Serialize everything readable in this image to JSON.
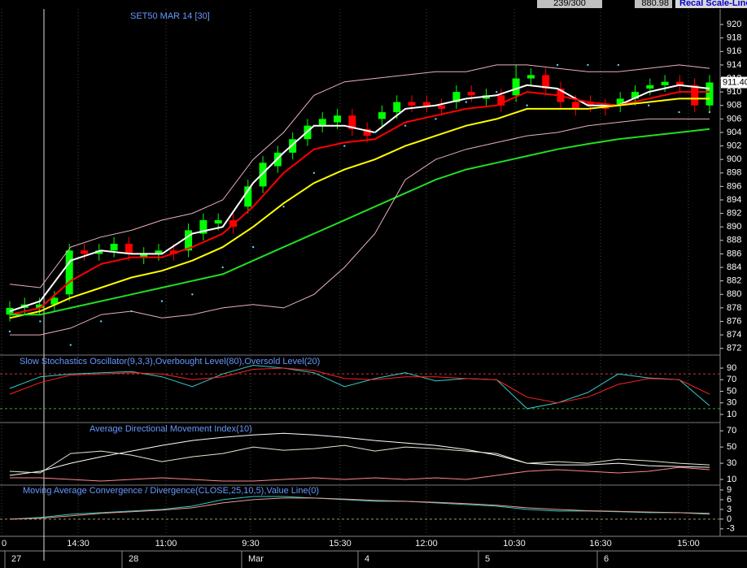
{
  "header": {
    "counter": "239/300",
    "price": "880.98",
    "button": "Recal Scale-Line"
  },
  "x_axis": {
    "times": [
      "0",
      "14:30",
      "11:00",
      "9:30",
      "15:30",
      "12:00",
      "10:30",
      "16:30",
      "15:00"
    ],
    "dates": [
      "27",
      "28",
      "Mar",
      "4",
      "5",
      "6"
    ]
  },
  "chart_data": [
    {
      "type": "candlestick",
      "title": "SET50 MAR 14   [30]",
      "up_color": "#00ff00",
      "down_color": "#ff0000",
      "open": [
        877,
        878,
        878,
        878.5,
        880,
        886.5,
        886,
        886.5,
        887.5,
        885.5,
        886,
        886.5,
        886.5,
        889,
        890.5,
        891,
        893,
        896,
        899,
        901,
        903,
        905,
        905.5,
        906.5,
        904.5,
        906,
        907,
        908.5,
        908.5,
        908,
        908.5,
        910,
        909,
        909.5,
        909.5,
        912,
        912.5,
        910.5,
        908.5,
        908.5,
        908,
        908,
        909,
        910.5,
        911,
        911.5,
        911,
        908
      ],
      "high": [
        879,
        879.5,
        879.5,
        880.5,
        887.5,
        887.5,
        887.5,
        888.5,
        888.5,
        887,
        887.5,
        887.5,
        890.5,
        892,
        892,
        892,
        897,
        900.5,
        902,
        904,
        906,
        907,
        907.5,
        907.5,
        905.5,
        908,
        909.5,
        909.5,
        909.5,
        909,
        911,
        911,
        910.5,
        910.5,
        914,
        913.5,
        913.5,
        911.5,
        909.5,
        909.5,
        909,
        910,
        911,
        912,
        912.5,
        912.5,
        912,
        912.5
      ],
      "low": [
        876,
        877,
        877,
        877.5,
        879,
        885,
        885,
        885.5,
        885,
        884.5,
        885,
        885,
        885.5,
        888,
        889.5,
        889,
        892,
        895,
        898,
        900,
        902,
        904,
        904.5,
        903.5,
        902.5,
        905,
        906,
        907,
        907,
        906.5,
        907.5,
        908.5,
        908,
        907,
        908.5,
        911,
        909.5,
        907.5,
        906.5,
        907,
        906.5,
        907,
        908,
        909.5,
        910,
        910,
        907,
        907
      ],
      "close": [
        878,
        878.5,
        878.5,
        879.5,
        886.5,
        886,
        886.5,
        887.5,
        886,
        886,
        886.5,
        886,
        889.5,
        891,
        891,
        890,
        896,
        899.5,
        901,
        903,
        905,
        906,
        906.5,
        904.5,
        903.5,
        907,
        908.5,
        908,
        908,
        907.5,
        910,
        909.5,
        909.5,
        908,
        912,
        912.5,
        910.5,
        908.5,
        907.5,
        908,
        907.5,
        909,
        910,
        911,
        911.5,
        911,
        908,
        911.4
      ],
      "last_label": "911.40",
      "series": [
        {
          "color": "#ffffff",
          "values": [
            877.5,
            879,
            885,
            886.5,
            886,
            886,
            889,
            890,
            896.5,
            901,
            905,
            905,
            904,
            907.5,
            908,
            909,
            909.5,
            911,
            910.5,
            908,
            908,
            910,
            911,
            910.5
          ]
        },
        {
          "color": "#ff0000",
          "values": [
            877,
            878,
            882,
            884.5,
            885.5,
            885.5,
            887,
            889,
            893,
            898,
            901.5,
            902.5,
            903,
            905.5,
            906.5,
            907.5,
            908,
            910,
            909.5,
            908.5,
            908,
            909,
            910,
            910
          ]
        },
        {
          "color": "#ffff00",
          "values": [
            876.5,
            877.5,
            879.5,
            881,
            882.5,
            883.5,
            885,
            887,
            890,
            893.5,
            896.5,
            898.5,
            900,
            902,
            903.5,
            905,
            906,
            907.5,
            907.5,
            907.5,
            908,
            908.5,
            909,
            909
          ]
        },
        {
          "color": "#22dd22",
          "values": [
            877,
            877,
            878,
            879,
            880,
            881,
            882,
            883,
            885,
            887,
            889,
            891,
            893,
            895,
            897,
            898.5,
            899.5,
            900.5,
            901.5,
            902.3,
            903,
            903.5,
            904,
            904.5
          ]
        },
        {
          "color": "#e8b0c0",
          "values": [
            881.5,
            881,
            887,
            888.5,
            889.5,
            891,
            892,
            894,
            900,
            904,
            909.5,
            911.5,
            912,
            912.5,
            913,
            913,
            914,
            914,
            913.5,
            913,
            913,
            913.5,
            914,
            913.5
          ]
        },
        {
          "color": "#e8b0c0",
          "values": [
            874,
            874,
            875,
            877,
            877.5,
            876.5,
            877,
            878,
            878.5,
            878,
            880,
            884,
            889,
            897,
            900,
            901.5,
            902.5,
            903.5,
            904,
            905,
            905.5,
            906,
            906,
            906
          ]
        },
        {
          "color": "#66ccff",
          "style": "dots",
          "values": [
            874.5,
            876,
            872.5,
            876,
            877.5,
            879,
            880,
            884,
            887,
            893,
            898,
            902,
            904,
            905,
            906,
            908.5,
            910,
            908,
            914,
            914,
            914,
            908,
            907,
            907
          ]
        }
      ],
      "ylim": [
        871,
        922.3
      ],
      "yticks": [
        872,
        874,
        876,
        878,
        880,
        882,
        884,
        886,
        888,
        890,
        892,
        894,
        896,
        898,
        900,
        902,
        904,
        906,
        908,
        910,
        912,
        914,
        916,
        918,
        920
      ]
    },
    {
      "type": "line",
      "title": "Slow Stochastics Oscillator(9,3,3),Overbought Level(80),Oversold Level(20)",
      "series": [
        {
          "color": "#33cccc",
          "values": [
            55,
            75,
            80,
            82,
            84,
            75,
            58,
            80,
            95,
            90,
            82,
            58,
            72,
            82,
            68,
            72,
            70,
            20,
            30,
            48,
            80,
            73,
            70,
            25
          ]
        },
        {
          "color": "#ff2222",
          "values": [
            45,
            65,
            78,
            80,
            82,
            80,
            70,
            75,
            88,
            90,
            86,
            72,
            70,
            75,
            75,
            72,
            70,
            40,
            30,
            40,
            62,
            72,
            70,
            45
          ]
        }
      ],
      "levels": [
        {
          "value": 80,
          "color": "#cc3333"
        },
        {
          "value": 20,
          "color": "#33aa33"
        }
      ],
      "ylim": [
        -4,
        112.5
      ],
      "yticks": [
        10,
        30,
        50,
        70,
        90
      ]
    },
    {
      "type": "line",
      "title": "Average Directional Movement Index(10)",
      "series": [
        {
          "color": "#ffffff",
          "values": [
            15,
            20,
            30,
            38,
            45,
            52,
            58,
            62,
            65,
            67,
            65,
            62,
            58,
            55,
            52,
            47,
            40,
            30,
            28,
            28,
            30,
            27,
            26,
            25
          ]
        },
        {
          "color": "#e0e8d0",
          "values": [
            20,
            18,
            42,
            45,
            40,
            32,
            38,
            42,
            50,
            46,
            48,
            52,
            45,
            50,
            48,
            45,
            42,
            30,
            32,
            30,
            35,
            33,
            30,
            28
          ]
        },
        {
          "color": "#ff8888",
          "values": [
            12,
            12,
            10,
            8,
            10,
            12,
            10,
            8,
            8,
            10,
            12,
            10,
            12,
            10,
            12,
            10,
            15,
            20,
            22,
            20,
            18,
            20,
            25,
            22
          ]
        }
      ],
      "ylim": [
        3,
        80.2
      ],
      "yticks": [
        10,
        30,
        50,
        70
      ]
    },
    {
      "type": "line",
      "title": "Moving Average Convergence / Divergence(CLOSE,25,10,5),Value Line(0)",
      "series": [
        {
          "color": "#33cccc",
          "values": [
            0,
            0.5,
            1.5,
            2,
            2.5,
            3,
            4,
            6,
            7,
            7,
            6.5,
            6,
            5.5,
            5.5,
            5,
            4.5,
            4,
            3,
            2.5,
            2.5,
            2.3,
            2,
            2,
            1.5
          ]
        },
        {
          "color": "#ee9988",
          "values": [
            0,
            0.3,
            1,
            1.8,
            2.3,
            2.8,
            3.5,
            5,
            6,
            6.5,
            6.5,
            6.2,
            5.8,
            5.5,
            5.2,
            4.8,
            4.3,
            3.5,
            3,
            2.6,
            2.4,
            2.2,
            2,
            1.8
          ]
        }
      ],
      "levels": [
        {
          "value": 0,
          "color": "#999966"
        }
      ],
      "ylim": [
        -5.3,
        10.5
      ],
      "yticks": [
        -3,
        0,
        3,
        6,
        9
      ]
    }
  ]
}
